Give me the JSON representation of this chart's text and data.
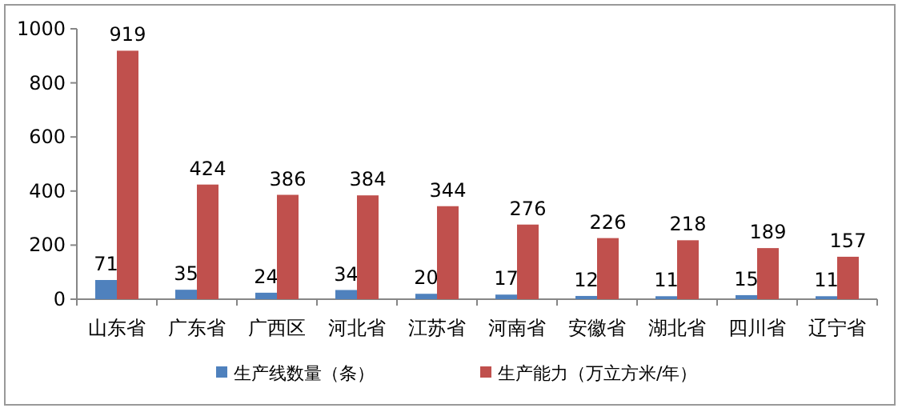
{
  "chart_data": {
    "type": "bar",
    "categories": [
      "山东省",
      "广东省",
      "广西区",
      "河北省",
      "江苏省",
      "河南省",
      "安徽省",
      "湖北省",
      "四川省",
      "辽宁省"
    ],
    "series": [
      {
        "name": "生产线数量（条）",
        "color": "#4f81bd",
        "values": [
          71,
          35,
          24,
          34,
          20,
          17,
          12,
          11,
          15,
          11
        ]
      },
      {
        "name": "生产能力（万立方米/年）",
        "color": "#c0504d",
        "values": [
          919,
          424,
          386,
          384,
          344,
          276,
          226,
          218,
          189,
          157
        ]
      }
    ],
    "ylim": [
      0,
      1000
    ],
    "yticks": [
      0,
      200,
      400,
      600,
      800,
      1000
    ],
    "data_labels": true,
    "legend": "bottom"
  }
}
